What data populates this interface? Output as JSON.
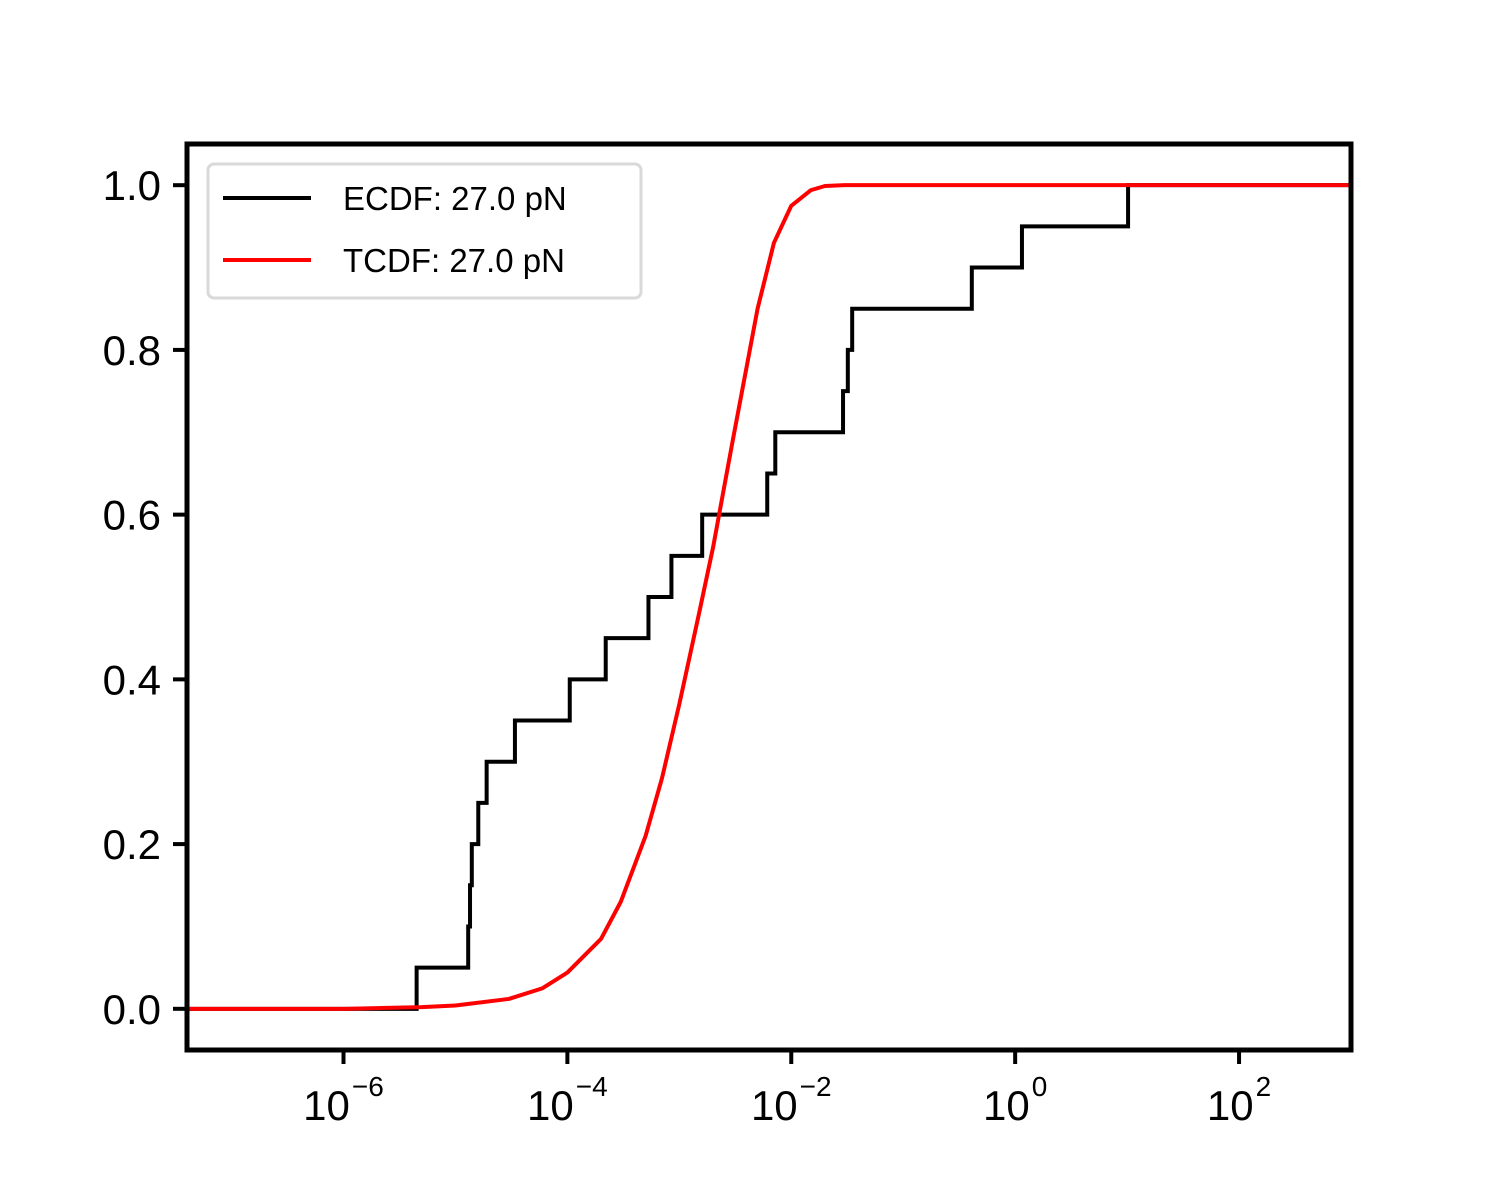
{
  "chart_data": {
    "type": "line",
    "xscale": "log",
    "xlim": [
      4e-08,
      1000
    ],
    "ylim": [
      -0.05,
      1.05
    ],
    "grid": false,
    "legend_placement": "top-left",
    "xticks": [
      {
        "value": 1e-06,
        "base": "10",
        "exponent": "−6"
      },
      {
        "value": 0.0001,
        "base": "10",
        "exponent": "−4"
      },
      {
        "value": 0.01,
        "base": "10",
        "exponent": "−2"
      },
      {
        "value": 1,
        "base": "10",
        "exponent": "0"
      },
      {
        "value": 100,
        "base": "10",
        "exponent": "2"
      }
    ],
    "yticks": [
      {
        "value": 0.0,
        "label": "0.0"
      },
      {
        "value": 0.2,
        "label": "0.2"
      },
      {
        "value": 0.4,
        "label": "0.4"
      },
      {
        "value": 0.6,
        "label": "0.6"
      },
      {
        "value": 0.8,
        "label": "0.8"
      },
      {
        "value": 1.0,
        "label": "1.0"
      }
    ],
    "series": [
      {
        "name": "ECDF: 27.0 pN",
        "color": "#000000",
        "drawstyle": "steps-post",
        "x": [
          4e-08,
          4.5e-06,
          1.3e-05,
          1.35e-05,
          1.4e-05,
          1.6e-05,
          1.9e-05,
          3.4e-05,
          0.000105,
          0.00022,
          0.00053,
          0.00085,
          0.0016,
          0.0061,
          0.0072,
          0.029,
          0.032,
          0.035,
          0.41,
          1.15,
          10.2,
          12,
          1000
        ],
        "y": [
          0.0,
          0.05,
          0.1,
          0.15,
          0.2,
          0.25,
          0.3,
          0.35,
          0.4,
          0.45,
          0.5,
          0.55,
          0.6,
          0.65,
          0.7,
          0.75,
          0.8,
          0.85,
          0.9,
          0.95,
          1.0,
          1.0,
          1.0
        ]
      },
      {
        "name": "TCDF: 27.0 pN",
        "color": "#ff0000",
        "x": [
          4e-08,
          1e-07,
          1e-06,
          5e-06,
          1e-05,
          3e-05,
          6e-05,
          0.0001,
          0.0002,
          0.0003,
          0.0005,
          0.0007,
          0.001,
          0.0015,
          0.002,
          0.003,
          0.004,
          0.005,
          0.007,
          0.01,
          0.015,
          0.02,
          0.03,
          0.05,
          1,
          1000
        ],
        "y": [
          0.0,
          0.0,
          0.0,
          0.002,
          0.004,
          0.012,
          0.025,
          0.044,
          0.085,
          0.13,
          0.21,
          0.28,
          0.37,
          0.48,
          0.56,
          0.69,
          0.78,
          0.85,
          0.93,
          0.975,
          0.994,
          0.999,
          1.0,
          1.0,
          1.0,
          1.0
        ]
      }
    ]
  }
}
